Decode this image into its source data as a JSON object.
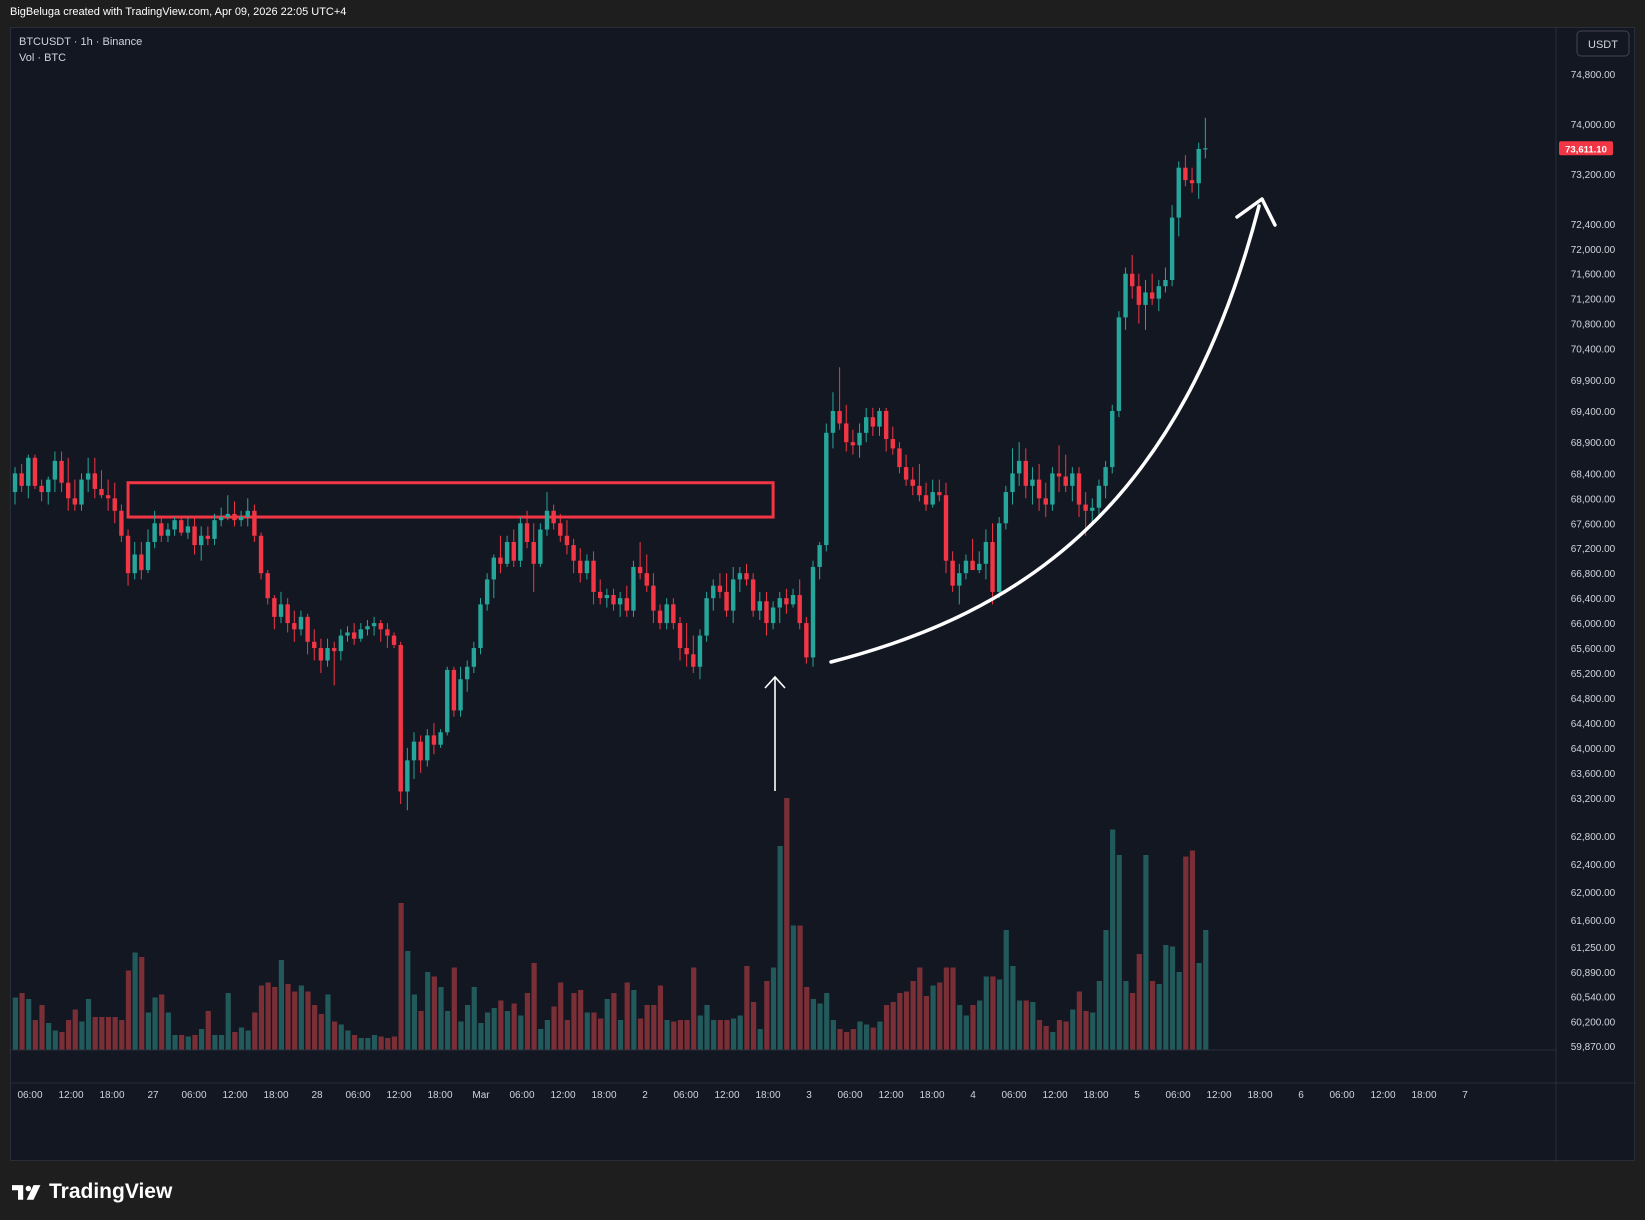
{
  "header": {
    "attribution": "BigBeluga created with TradingView.com, Apr 09, 2026 22:05 UTC+4"
  },
  "legend": {
    "symbol_line": "BTCUSDT · 1h · Binance",
    "volume_line": "Vol · BTC"
  },
  "currency_button": "USDT",
  "footer": {
    "brand": "TradingView"
  },
  "colors": {
    "up": "#26a69a",
    "down": "#f23645",
    "bg": "#131722",
    "up_vol": "#22595a",
    "down_vol": "#7a2f37",
    "zone": "#f23645",
    "arrow": "#ffffff"
  },
  "chart_data": {
    "type": "candlestick",
    "symbol": "BTCUSDT",
    "interval": "1h",
    "exchange": "Binance",
    "last_price": "73,611.10",
    "x_axis_labels": [
      "06:00",
      "12:00",
      "18:00",
      "27",
      "06:00",
      "12:00",
      "18:00",
      "28",
      "06:00",
      "12:00",
      "18:00",
      "Mar",
      "06:00",
      "12:00",
      "18:00",
      "2",
      "06:00",
      "12:00",
      "18:00",
      "3",
      "06:00",
      "12:00",
      "18:00",
      "4",
      "06:00",
      "12:00",
      "18:00",
      "5",
      "06:00",
      "12:00",
      "18:00",
      "6",
      "06:00",
      "12:00",
      "18:00",
      "7"
    ],
    "y_axis_labels": [
      "74,800.00",
      "74,000.00",
      "73,200.00",
      "72,400.00",
      "72,000.00",
      "71,600.00",
      "71,200.00",
      "70,800.00",
      "70,400.00",
      "69,900.00",
      "69,400.00",
      "68,900.00",
      "68,400.00",
      "68,000.00",
      "67,600.00",
      "67,200.00",
      "66,800.00",
      "66,400.00",
      "66,000.00",
      "65,600.00",
      "65,200.00",
      "64,800.00",
      "64,400.00",
      "64,000.00",
      "63,600.00",
      "63,200.00",
      "62,800.00",
      "62,400.00",
      "62,000.00",
      "61,600.00",
      "61,250.00",
      "60,890.00",
      "60,540.00",
      "60,200.00",
      "59,870.00"
    ],
    "price_range_approx": [
      63000,
      74100
    ],
    "resistance_zone": {
      "top": 68250,
      "bottom": 67700
    },
    "candles_ohlc": [
      [
        68100,
        68500,
        67900,
        68400
      ],
      [
        68400,
        68550,
        68100,
        68200
      ],
      [
        68200,
        68700,
        68000,
        68650
      ],
      [
        68650,
        68700,
        68150,
        68200
      ],
      [
        68200,
        68300,
        67950,
        68100
      ],
      [
        68100,
        68350,
        67900,
        68300
      ],
      [
        68300,
        68750,
        68100,
        68600
      ],
      [
        68600,
        68750,
        68100,
        68250
      ],
      [
        68250,
        68650,
        67800,
        68000
      ],
      [
        68000,
        68300,
        67800,
        67900
      ],
      [
        67900,
        68400,
        67800,
        68300
      ],
      [
        68300,
        68650,
        68100,
        68400
      ],
      [
        68400,
        68650,
        68000,
        68150
      ],
      [
        68150,
        68450,
        68000,
        68050
      ],
      [
        68050,
        68300,
        67800,
        68000
      ],
      [
        68000,
        68250,
        67600,
        67800
      ],
      [
        67800,
        67900,
        67300,
        67400
      ],
      [
        67400,
        67500,
        66600,
        66800
      ],
      [
        66800,
        67300,
        66700,
        67100
      ],
      [
        67100,
        67300,
        66700,
        66850
      ],
      [
        66850,
        67500,
        66800,
        67300
      ],
      [
        67300,
        67800,
        67200,
        67600
      ],
      [
        67600,
        67700,
        67300,
        67400
      ],
      [
        67400,
        67600,
        67300,
        67500
      ],
      [
        67500,
        67700,
        67400,
        67650
      ],
      [
        67650,
        67700,
        67400,
        67450
      ],
      [
        67450,
        67700,
        67350,
        67550
      ],
      [
        67550,
        67700,
        67100,
        67250
      ],
      [
        67250,
        67550,
        67000,
        67400
      ],
      [
        67400,
        67550,
        67250,
        67350
      ],
      [
        67350,
        67750,
        67250,
        67650
      ],
      [
        67650,
        67850,
        67550,
        67700
      ],
      [
        67700,
        68050,
        67650,
        67750
      ],
      [
        67750,
        67950,
        67550,
        67650
      ],
      [
        67650,
        67800,
        67550,
        67700
      ],
      [
        67700,
        68000,
        67550,
        67800
      ],
      [
        67800,
        67900,
        67300,
        67400
      ],
      [
        67400,
        67450,
        66700,
        66800
      ],
      [
        66800,
        66850,
        66300,
        66400
      ],
      [
        66400,
        66450,
        65900,
        66100
      ],
      [
        66100,
        66500,
        66000,
        66300
      ],
      [
        66300,
        66400,
        65850,
        66000
      ],
      [
        66000,
        66200,
        65700,
        65900
      ],
      [
        65900,
        66200,
        65800,
        66100
      ],
      [
        66100,
        66150,
        65500,
        65700
      ],
      [
        65700,
        65900,
        65400,
        65600
      ],
      [
        65600,
        65750,
        65200,
        65400
      ],
      [
        65400,
        65750,
        65300,
        65600
      ],
      [
        65600,
        65700,
        65000,
        65550
      ],
      [
        65550,
        65900,
        65400,
        65800
      ],
      [
        65800,
        65950,
        65700,
        65850
      ],
      [
        65850,
        66000,
        65650,
        65750
      ],
      [
        65750,
        66000,
        65700,
        65900
      ],
      [
        65900,
        66050,
        65800,
        65950
      ],
      [
        65950,
        66100,
        65800,
        66000
      ],
      [
        66000,
        66050,
        65700,
        65900
      ],
      [
        65900,
        66000,
        65600,
        65800
      ],
      [
        65800,
        65850,
        65600,
        65650
      ],
      [
        65650,
        65700,
        63100,
        63300
      ],
      [
        63300,
        64000,
        63000,
        63800
      ],
      [
        63800,
        64250,
        63500,
        64100
      ],
      [
        64100,
        64200,
        63600,
        63800
      ],
      [
        63800,
        64300,
        63700,
        64200
      ],
      [
        64200,
        64400,
        63900,
        64050
      ],
      [
        64050,
        64300,
        64000,
        64250
      ],
      [
        64250,
        65300,
        64200,
        65250
      ],
      [
        65250,
        65300,
        64500,
        64600
      ],
      [
        64600,
        65300,
        64500,
        65100
      ],
      [
        65100,
        65400,
        64900,
        65300
      ],
      [
        65300,
        65700,
        65200,
        65600
      ],
      [
        65600,
        66400,
        65500,
        66300
      ],
      [
        66300,
        66800,
        66200,
        66700
      ],
      [
        66700,
        67100,
        66400,
        67050
      ],
      [
        67050,
        67400,
        66800,
        66950
      ],
      [
        66950,
        67400,
        66900,
        67300
      ],
      [
        67300,
        67500,
        66900,
        67000
      ],
      [
        67000,
        67700,
        66900,
        67600
      ],
      [
        67600,
        67800,
        67200,
        67300
      ],
      [
        67300,
        67600,
        66500,
        66950
      ],
      [
        66950,
        67600,
        66900,
        67500
      ],
      [
        67500,
        68100,
        67400,
        67800
      ],
      [
        67800,
        67900,
        67500,
        67600
      ],
      [
        67600,
        67750,
        67300,
        67400
      ],
      [
        67400,
        67650,
        67100,
        67250
      ],
      [
        67250,
        67350,
        66800,
        67000
      ],
      [
        67000,
        67200,
        66650,
        66800
      ],
      [
        66800,
        67100,
        66700,
        67000
      ],
      [
        67000,
        67150,
        66300,
        66500
      ],
      [
        66500,
        66700,
        66300,
        66400
      ],
      [
        66400,
        66550,
        66250,
        66450
      ],
      [
        66450,
        66550,
        66200,
        66300
      ],
      [
        66300,
        66500,
        66100,
        66400
      ],
      [
        66400,
        66600,
        66100,
        66200
      ],
      [
        66200,
        67000,
        66100,
        66900
      ],
      [
        66900,
        67300,
        66700,
        66800
      ],
      [
        66800,
        67100,
        66500,
        66600
      ],
      [
        66600,
        66800,
        66000,
        66200
      ],
      [
        66200,
        66300,
        65900,
        66000
      ],
      [
        66000,
        66400,
        65900,
        66300
      ],
      [
        66300,
        66400,
        65900,
        66000
      ],
      [
        66000,
        66100,
        65400,
        65600
      ],
      [
        65600,
        66000,
        65300,
        65500
      ],
      [
        65500,
        65800,
        65200,
        65300
      ],
      [
        65300,
        65900,
        65100,
        65800
      ],
      [
        65800,
        66500,
        65700,
        66400
      ],
      [
        66400,
        66700,
        66200,
        66600
      ],
      [
        66600,
        66800,
        66400,
        66500
      ],
      [
        66500,
        66800,
        66100,
        66200
      ],
      [
        66200,
        66900,
        66000,
        66700
      ],
      [
        66700,
        66900,
        66500,
        66800
      ],
      [
        66800,
        66950,
        66600,
        66700
      ],
      [
        66700,
        66800,
        66100,
        66200
      ],
      [
        66200,
        66500,
        66050,
        66350
      ],
      [
        66350,
        66500,
        65800,
        66000
      ],
      [
        66000,
        66350,
        65900,
        66250
      ],
      [
        66250,
        66500,
        66000,
        66400
      ],
      [
        66400,
        66550,
        66150,
        66300
      ],
      [
        66300,
        66550,
        66250,
        66450
      ],
      [
        66450,
        66700,
        65900,
        66000
      ],
      [
        66000,
        66100,
        65350,
        65450
      ],
      [
        65450,
        67000,
        65300,
        66900
      ],
      [
        66900,
        67300,
        66700,
        67250
      ],
      [
        67250,
        69200,
        67150,
        69050
      ],
      [
        69050,
        69700,
        68800,
        69400
      ],
      [
        69400,
        70100,
        69100,
        69200
      ],
      [
        69200,
        69500,
        68750,
        68900
      ],
      [
        68900,
        69100,
        68700,
        68850
      ],
      [
        68850,
        69200,
        68650,
        69050
      ],
      [
        69050,
        69450,
        68900,
        69300
      ],
      [
        69300,
        69450,
        69000,
        69150
      ],
      [
        69150,
        69450,
        69000,
        69400
      ],
      [
        69400,
        69450,
        68750,
        68950
      ],
      [
        68950,
        69150,
        68700,
        68800
      ],
      [
        68800,
        68900,
        68400,
        68500
      ],
      [
        68500,
        68700,
        68200,
        68300
      ],
      [
        68300,
        68500,
        68050,
        68200
      ],
      [
        68200,
        68550,
        67950,
        68050
      ],
      [
        68050,
        68250,
        67800,
        67900
      ],
      [
        67900,
        68300,
        67850,
        68100
      ],
      [
        68100,
        68300,
        67950,
        68050
      ],
      [
        68050,
        68250,
        66800,
        67000
      ],
      [
        67000,
        67150,
        66500,
        66600
      ],
      [
        66600,
        66950,
        66300,
        66800
      ],
      [
        66800,
        67100,
        66700,
        67000
      ],
      [
        67000,
        67350,
        66900,
        66850
      ],
      [
        66850,
        67150,
        66800,
        66950
      ],
      [
        66950,
        67500,
        66700,
        67300
      ],
      [
        67300,
        67600,
        66300,
        66500
      ],
      [
        66500,
        67700,
        66400,
        67600
      ],
      [
        67600,
        68200,
        67500,
        68100
      ],
      [
        68100,
        68800,
        67900,
        68400
      ],
      [
        68400,
        68900,
        68200,
        68600
      ],
      [
        68600,
        68800,
        68000,
        68200
      ],
      [
        68200,
        68500,
        67900,
        68300
      ],
      [
        68300,
        68550,
        67800,
        68000
      ],
      [
        68000,
        68250,
        67700,
        67900
      ],
      [
        67900,
        68500,
        67800,
        68400
      ],
      [
        68400,
        68850,
        68100,
        68350
      ],
      [
        68350,
        68700,
        68100,
        68200
      ],
      [
        68200,
        68500,
        67950,
        68400
      ],
      [
        68400,
        68500,
        67700,
        67900
      ],
      [
        67900,
        68100,
        67400,
        67800
      ],
      [
        67800,
        68000,
        67600,
        67850
      ],
      [
        67850,
        68300,
        67700,
        68200
      ],
      [
        68200,
        68600,
        68000,
        68500
      ],
      [
        68500,
        69500,
        68400,
        69400
      ],
      [
        69400,
        71000,
        69300,
        70900
      ],
      [
        70900,
        71700,
        70700,
        71600
      ],
      [
        71600,
        71900,
        71200,
        71400
      ],
      [
        71400,
        71600,
        70800,
        71100
      ],
      [
        71100,
        71500,
        70700,
        71300
      ],
      [
        71300,
        71600,
        71100,
        71200
      ],
      [
        71200,
        71500,
        71000,
        71400
      ],
      [
        71400,
        71700,
        71300,
        71500
      ],
      [
        71500,
        72700,
        71400,
        72500
      ],
      [
        72500,
        73400,
        72200,
        73300
      ],
      [
        73300,
        73500,
        73000,
        73100
      ],
      [
        73100,
        73300,
        72900,
        73050
      ],
      [
        73050,
        73700,
        72800,
        73600
      ],
      [
        73600,
        74100,
        73450,
        73611
      ]
    ],
    "volume_relative": [
      0.35,
      0.38,
      0.34,
      0.2,
      0.3,
      0.18,
      0.13,
      0.12,
      0.2,
      0.27,
      0.19,
      0.34,
      0.22,
      0.22,
      0.22,
      0.22,
      0.2,
      0.53,
      0.65,
      0.62,
      0.25,
      0.35,
      0.37,
      0.25,
      0.1,
      0.1,
      0.09,
      0.1,
      0.14,
      0.26,
      0.1,
      0.1,
      0.38,
      0.12,
      0.15,
      0.13,
      0.25,
      0.43,
      0.45,
      0.42,
      0.6,
      0.44,
      0.39,
      0.43,
      0.39,
      0.3,
      0.24,
      0.37,
      0.19,
      0.17,
      0.13,
      0.1,
      0.08,
      0.08,
      0.1,
      0.09,
      0.08,
      0.09,
      0.98,
      0.66,
      0.37,
      0.26,
      0.52,
      0.49,
      0.42,
      0.26,
      0.55,
      0.19,
      0.3,
      0.42,
      0.18,
      0.25,
      0.28,
      0.33,
      0.26,
      0.31,
      0.23,
      0.38,
      0.58,
      0.14,
      0.2,
      0.29,
      0.45,
      0.2,
      0.38,
      0.4,
      0.25,
      0.25,
      0.21,
      0.34,
      0.38,
      0.2,
      0.45,
      0.4,
      0.21,
      0.3,
      0.3,
      0.43,
      0.2,
      0.19,
      0.2,
      0.2,
      0.55,
      0.23,
      0.3,
      0.2,
      0.2,
      0.2,
      0.21,
      0.23,
      0.56,
      0.32,
      0.14,
      0.46,
      0.55,
      1.36,
      1.68,
      0.83,
      0.83,
      0.42,
      0.34,
      0.31,
      0.38,
      0.2,
      0.14,
      0.12,
      0.14,
      0.19,
      0.17,
      0.15,
      0.19,
      0.3,
      0.32,
      0.38,
      0.39,
      0.46,
      0.55,
      0.36,
      0.43,
      0.45,
      0.55,
      0.55,
      0.3,
      0.23,
      0.3,
      0.33,
      0.49,
      0.49,
      0.47,
      0.8,
      0.56,
      0.33,
      0.33,
      0.32,
      0.2,
      0.16,
      0.12,
      0.2,
      0.19,
      0.27,
      0.39,
      0.26,
      0.25,
      0.46,
      0.8,
      1.47,
      1.3,
      0.46,
      0.38,
      0.64,
      1.3,
      0.46,
      0.44,
      0.7,
      0.69,
      0.52,
      1.29,
      1.33,
      0.58,
      0.8
    ]
  }
}
